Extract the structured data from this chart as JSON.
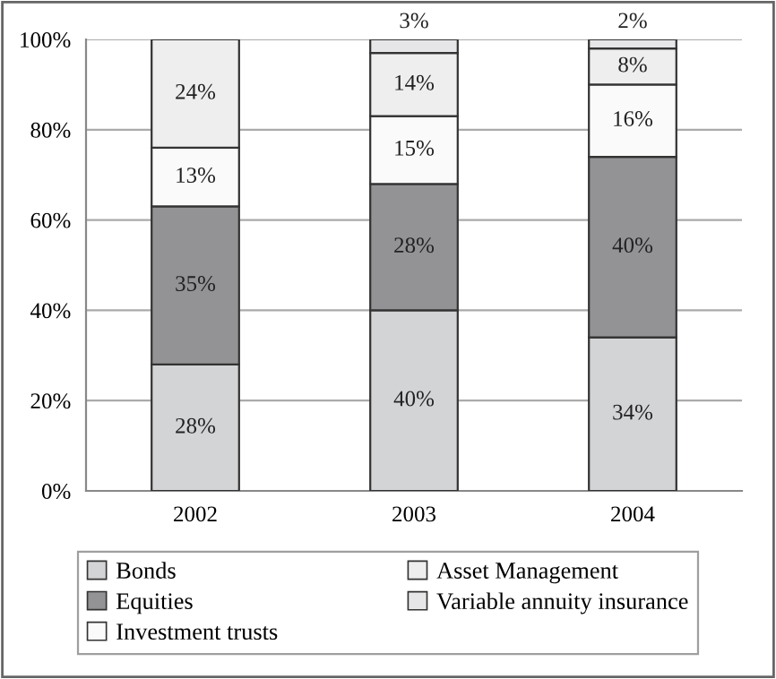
{
  "chart_data": {
    "type": "bar",
    "stacked": true,
    "categories": [
      "2002",
      "2003",
      "2004"
    ],
    "series": [
      {
        "name": "Bonds",
        "color": "#d3d4d6",
        "values": [
          28,
          40,
          34
        ],
        "value_labels": [
          "28%",
          "40%",
          "34%"
        ]
      },
      {
        "name": "Equities",
        "color": "#939396",
        "values": [
          35,
          28,
          40
        ],
        "value_labels": [
          "35%",
          "28%",
          "40%"
        ]
      },
      {
        "name": "Investment trusts",
        "color": "#fafafa",
        "values": [
          13,
          15,
          16
        ],
        "value_labels": [
          "13%",
          "15%",
          "16%"
        ]
      },
      {
        "name": "Asset Management",
        "color": "#eeeeef",
        "values": [
          24,
          14,
          8
        ],
        "value_labels": [
          "24%",
          "14%",
          "8%"
        ]
      },
      {
        "name": "Variable annuity insurance",
        "color": "#e6e6e8",
        "values": [
          null,
          3,
          2
        ],
        "value_labels": [
          null,
          "3%",
          "2%"
        ]
      }
    ],
    "ylim": [
      0,
      100
    ],
    "yticks": [
      {
        "value": 0,
        "label": "0%"
      },
      {
        "value": 20,
        "label": "20%"
      },
      {
        "value": 40,
        "label": "40%"
      },
      {
        "value": 60,
        "label": "60%"
      },
      {
        "value": 80,
        "label": "80%"
      },
      {
        "value": 100,
        "label": "100%"
      }
    ],
    "grid": "y",
    "legend": "bottom"
  }
}
